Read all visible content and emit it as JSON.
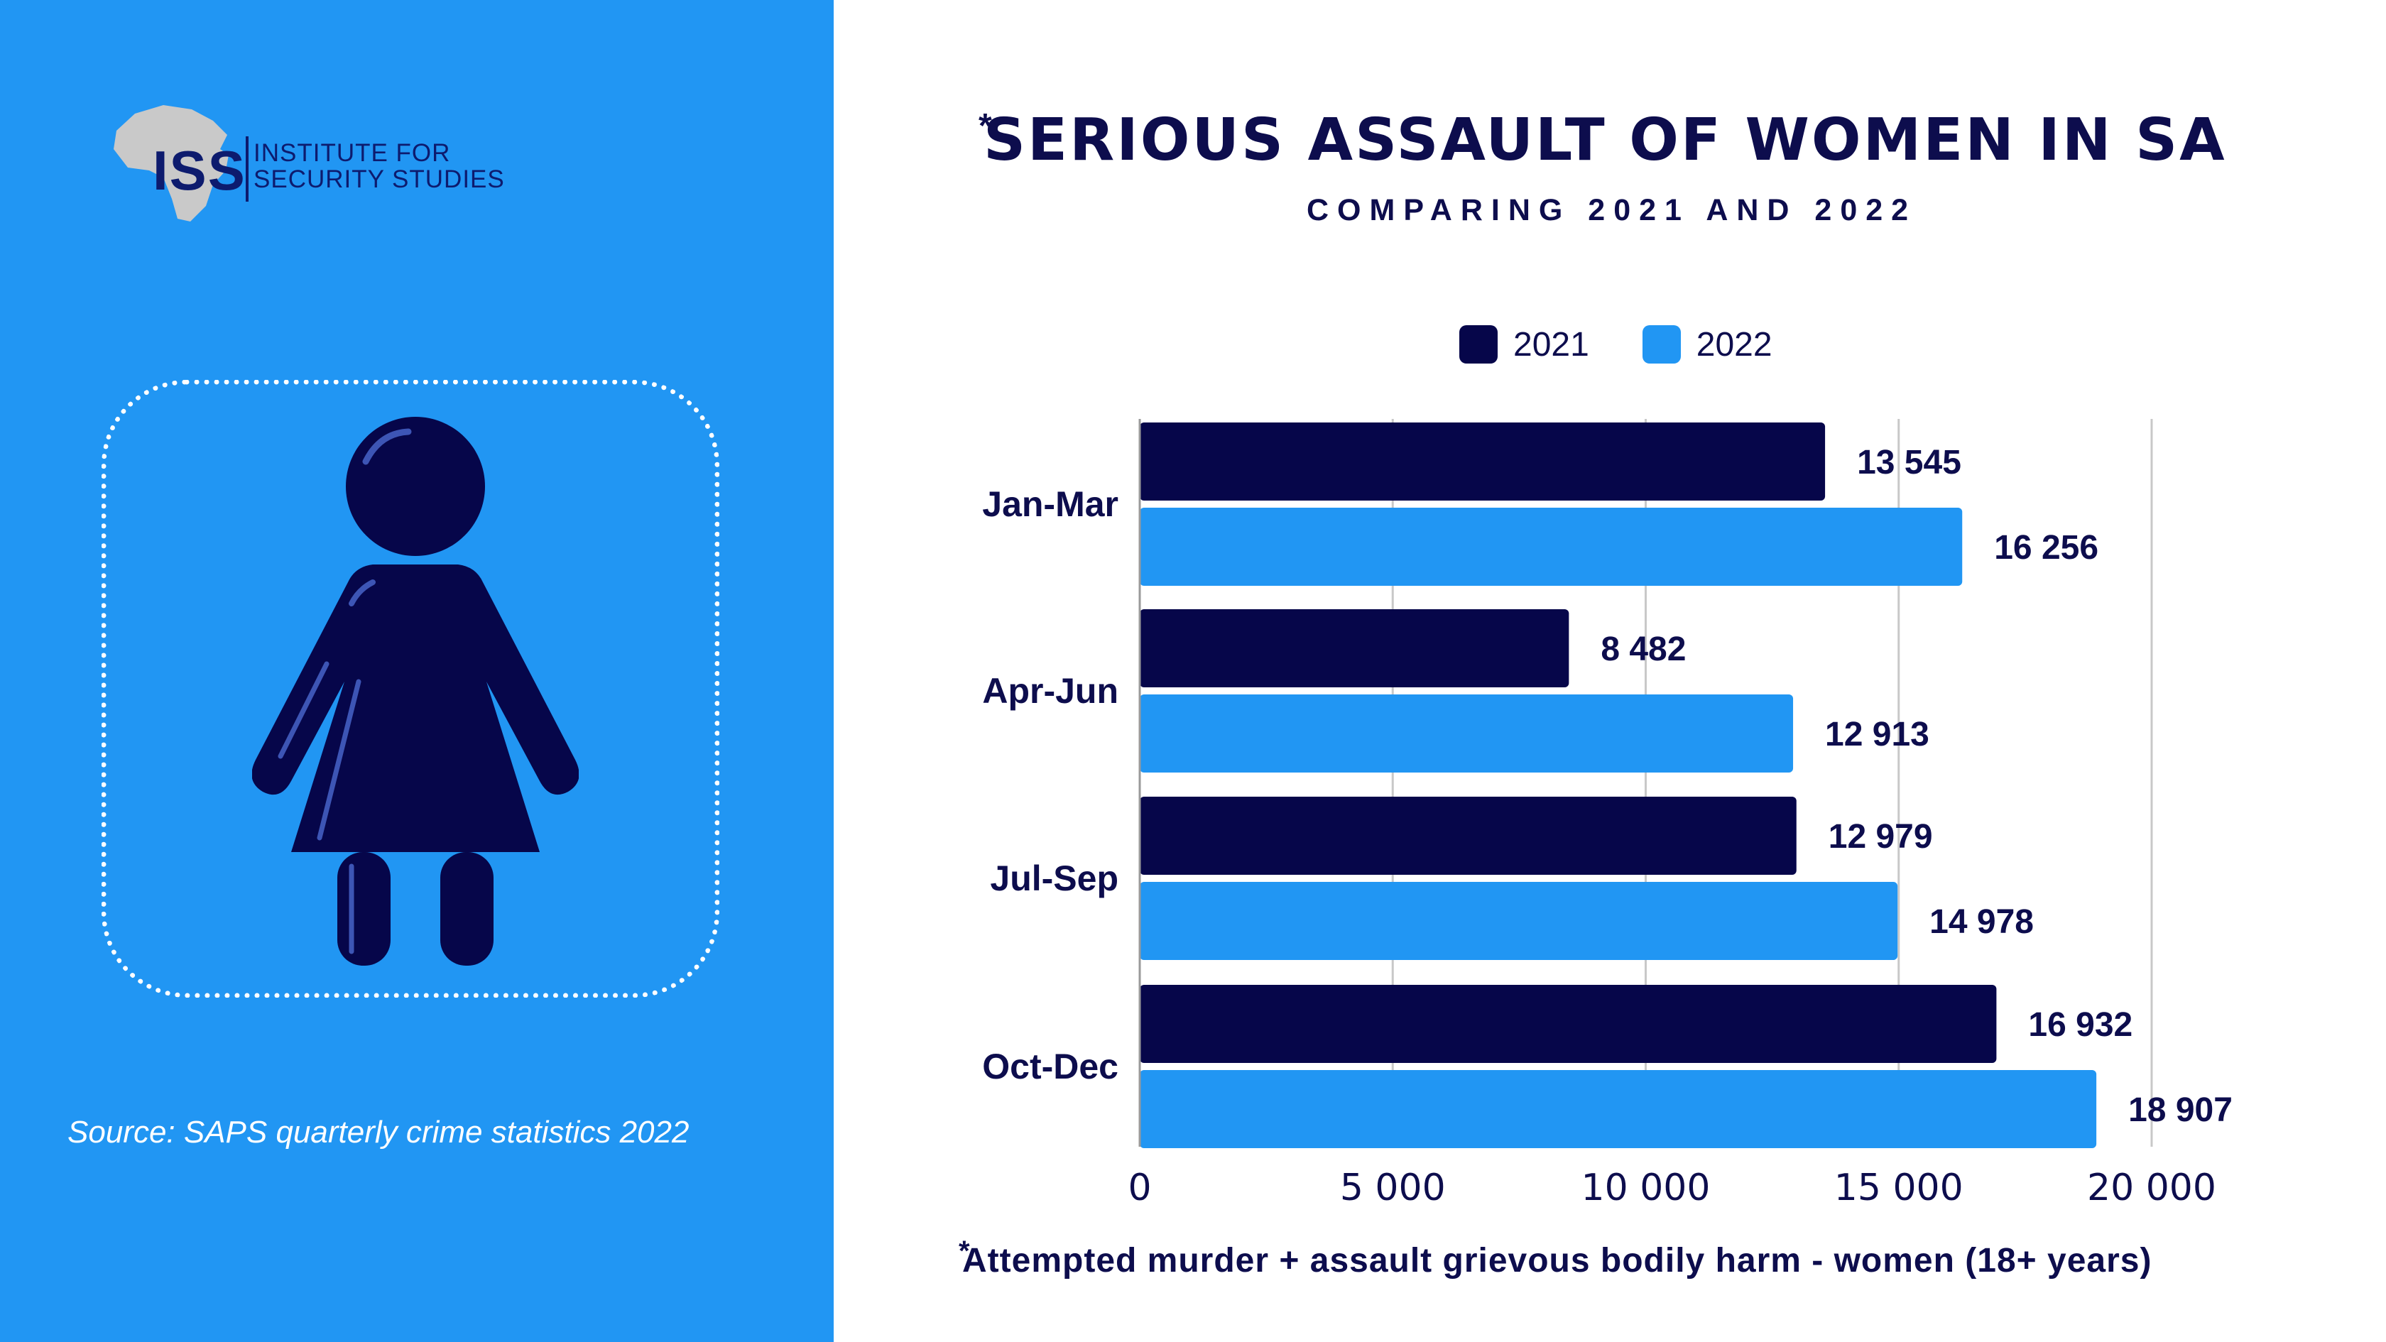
{
  "logo": {
    "abbr": "ISS",
    "line1": "INSTITUTE FOR",
    "line2": "SECURITY STUDIES"
  },
  "source": "Source:  SAPS quarterly crime statistics 2022",
  "title_star": "*",
  "footnote_star": "*",
  "footnote": "Attempted murder + assault grievous bodily harm - women (18+ years)",
  "colors": {
    "left_panel": "#2196f3",
    "series_2021": "#06064a",
    "series_2022": "#2196f3",
    "text_dark": "#0d0d4d",
    "gridline": "#c8c8c8"
  },
  "chart_data": {
    "type": "bar",
    "orientation": "horizontal",
    "title": "SERIOUS ASSAULT OF WOMEN IN SA",
    "subtitle": "COMPARING 2021 AND 2022",
    "categories": [
      "Jan-Mar",
      "Apr-Jun",
      "Jul-Sep",
      "Oct-Dec"
    ],
    "series": [
      {
        "name": "2021",
        "values": [
          13545,
          8482,
          12979,
          16932
        ],
        "labels": [
          "13 545",
          "8 482",
          "12 979",
          "16 932"
        ]
      },
      {
        "name": "2022",
        "values": [
          16256,
          12913,
          14978,
          18907
        ],
        "labels": [
          "16 256",
          "12 913",
          "14 978",
          "18 907"
        ]
      }
    ],
    "xlim": [
      0,
      20000
    ],
    "xticks": [
      0,
      5000,
      10000,
      15000,
      20000
    ],
    "xtick_labels": [
      "0",
      "5 000",
      "10 000",
      "15 000",
      "20 000"
    ],
    "xlabel": "",
    "ylabel": "",
    "grid": "vertical",
    "legend_position": "top"
  }
}
